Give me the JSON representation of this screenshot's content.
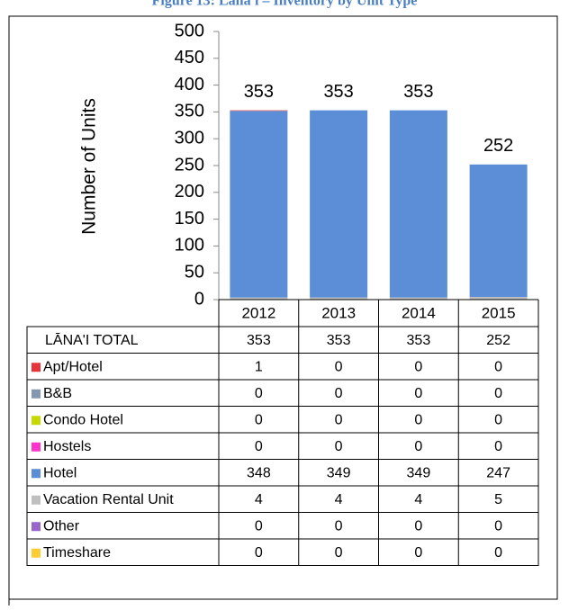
{
  "chart_data": {
    "type": "bar",
    "stacked": true,
    "title": "Figure 13: Lāna'i – Inventory by Unit Type",
    "y_label": "Number of Units",
    "categories": [
      "2012",
      "2013",
      "2014",
      "2015"
    ],
    "total_label": "LĀNA'I TOTAL",
    "totals": [
      353,
      353,
      353,
      252
    ],
    "series": [
      {
        "name": "Apt/Hotel",
        "color": "#e8323c",
        "values": [
          1,
          0,
          0,
          0
        ]
      },
      {
        "name": "B&B",
        "color": "#8496b0",
        "values": [
          0,
          0,
          0,
          0
        ]
      },
      {
        "name": "Condo Hotel",
        "color": "#c6d900",
        "values": [
          0,
          0,
          0,
          0
        ]
      },
      {
        "name": "Hostels",
        "color": "#ff33cc",
        "values": [
          0,
          0,
          0,
          0
        ]
      },
      {
        "name": "Hotel",
        "color": "#5b8ed6",
        "values": [
          348,
          349,
          349,
          247
        ]
      },
      {
        "name": "Vacation Rental Unit",
        "color": "#bfbfbf",
        "values": [
          4,
          4,
          4,
          5
        ]
      },
      {
        "name": "Other",
        "color": "#9966cc",
        "values": [
          0,
          0,
          0,
          0
        ]
      },
      {
        "name": "Timeshare",
        "color": "#ffcc33",
        "values": [
          0,
          0,
          0,
          0
        ]
      }
    ],
    "ylim": [
      0,
      500
    ],
    "yticks": [
      0,
      50,
      100,
      150,
      200,
      250,
      300,
      350,
      400,
      450,
      500
    ]
  }
}
